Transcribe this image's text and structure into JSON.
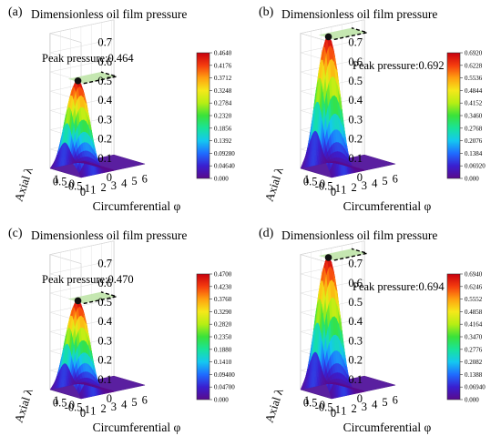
{
  "figure": {
    "panel_count": 4
  },
  "chart_data": [
    {
      "type": "surface",
      "panel_label": "(a)",
      "title": "Dimensionless oil film pressure",
      "xlabel": "Circumferential φ",
      "ylabel": "Axial λ",
      "x_ticks": [
        "0",
        "1",
        "2",
        "3",
        "4",
        "5",
        "6"
      ],
      "y_ticks": [
        "1",
        "0.5",
        "0",
        "-0.5",
        "-1"
      ],
      "z_ticks": [
        "0",
        "0.1",
        "0.2",
        "0.3",
        "0.4",
        "0.5",
        "0.6",
        "0.7"
      ],
      "zlim": [
        0,
        0.7
      ],
      "peak": {
        "x": 1.2,
        "y": 0.0,
        "z": 0.464
      },
      "annotation": "Peak pressure:0.464",
      "colorbar_ticks": [
        "0.4640",
        "0.4176",
        "0.3712",
        "0.3248",
        "0.2784",
        "0.2320",
        "0.1856",
        "0.1392",
        "0.09280",
        "0.04640",
        "0.000"
      ]
    },
    {
      "type": "surface",
      "panel_label": "(b)",
      "title": "Dimensionless oil film pressure",
      "xlabel": "Circumferential φ",
      "ylabel": "Axial λ",
      "x_ticks": [
        "0",
        "1",
        "2",
        "3",
        "4",
        "5",
        "6"
      ],
      "y_ticks": [
        "1",
        "0.5",
        "0",
        "-0.5",
        "-1"
      ],
      "z_ticks": [
        "0",
        "0.1",
        "0.2",
        "0.3",
        "0.4",
        "0.5",
        "0.6",
        "0.7"
      ],
      "zlim": [
        0,
        0.7
      ],
      "peak": {
        "x": 1.2,
        "y": 0.0,
        "z": 0.692
      },
      "annotation": "Peak pressure:0.692",
      "colorbar_ticks": [
        "0.6920",
        "0.6228",
        "0.5536",
        "0.4844",
        "0.4152",
        "0.3460",
        "0.2768",
        "0.2076",
        "0.1384",
        "0.06920",
        "0.000"
      ]
    },
    {
      "type": "surface",
      "panel_label": "(c)",
      "title": "Dimensionless oil film pressure",
      "xlabel": "Circumferential φ",
      "ylabel": "Axial λ",
      "x_ticks": [
        "0",
        "1",
        "2",
        "3",
        "4",
        "5",
        "6"
      ],
      "y_ticks": [
        "1",
        "0.5",
        "0",
        "-0.5",
        "-1"
      ],
      "z_ticks": [
        "0",
        "0.1",
        "0.2",
        "0.3",
        "0.4",
        "0.5",
        "0.6",
        "0.7"
      ],
      "zlim": [
        0,
        0.7
      ],
      "peak": {
        "x": 1.2,
        "y": 0.0,
        "z": 0.47
      },
      "annotation": "Peak pressure:0.470",
      "colorbar_ticks": [
        "0.4700",
        "0.4230",
        "0.3760",
        "0.3290",
        "0.2820",
        "0.2350",
        "0.1880",
        "0.1410",
        "0.09400",
        "0.04700",
        "0.000"
      ]
    },
    {
      "type": "surface",
      "panel_label": "(d)",
      "title": "Dimensionless oil film pressure",
      "xlabel": "Circumferential φ",
      "ylabel": "Axial λ",
      "x_ticks": [
        "0",
        "1",
        "2",
        "3",
        "4",
        "5",
        "6"
      ],
      "y_ticks": [
        "1",
        "0.5",
        "0",
        "-0.5",
        "-1"
      ],
      "z_ticks": [
        "0",
        "0.1",
        "0.2",
        "0.3",
        "0.4",
        "0.5",
        "0.6",
        "0.7"
      ],
      "zlim": [
        0,
        0.7
      ],
      "peak": {
        "x": 1.2,
        "y": 0.0,
        "z": 0.694
      },
      "annotation": "Peak pressure:0.694",
      "colorbar_ticks": [
        "0.6940",
        "0.6246",
        "0.5552",
        "0.4858",
        "0.4164",
        "0.3470",
        "0.2776",
        "0.2082",
        "0.1388",
        "0.06940",
        "0.000"
      ]
    }
  ],
  "colors": {
    "colormap": [
      "#5a0a8c",
      "#3a1fd0",
      "#1f6cff",
      "#14c8f0",
      "#18e39a",
      "#3ae23a",
      "#b6ee14",
      "#f5e81a",
      "#ffa010",
      "#f53c0e",
      "#c8000e"
    ],
    "floor": "#5a1fa0",
    "peak_plane": "#bfe4a8",
    "peak_marker": "#111111"
  }
}
